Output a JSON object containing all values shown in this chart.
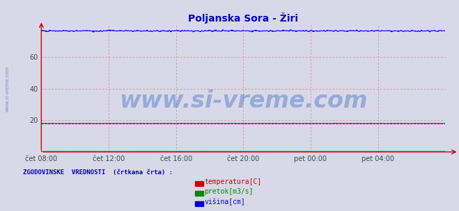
{
  "title": "Poljanska Sora - Žiri",
  "title_color": "#0000cc",
  "bg_color": "#d8d8e8",
  "plot_bg_color": "#d8d8e8",
  "ylim": [
    0,
    80
  ],
  "yticks": [
    20,
    40,
    60
  ],
  "xtick_labels": [
    "čet 08:00",
    "čet 12:00",
    "čet 16:00",
    "čet 20:00",
    "pet 00:00",
    "pet 04:00"
  ],
  "xtick_positions": [
    0,
    4,
    8,
    12,
    16,
    20
  ],
  "n_points": 288,
  "temp_value": 18.0,
  "flow_value": 0.3,
  "height_value": 76.5,
  "temp_color": "#cc0000",
  "flow_color": "#008800",
  "height_color": "#0000cc",
  "grid_color_v": "#cc8888",
  "grid_color_h": "#cc8888",
  "watermark_text": "www.si-vreme.com",
  "watermark_color": "#2255bb",
  "watermark_alpha": 0.35,
  "watermark_fontsize": 24,
  "left_text": "www.si-vreme.com",
  "left_text_color": "#2255bb",
  "legend_title": "ZGODOVINSKE  VREDNOSTI  (črtkana črta) :",
  "legend_items": [
    "temperatura[C]",
    "pretok[m3/s]",
    "višina[cm]"
  ],
  "legend_colors": [
    "#cc0000",
    "#008800",
    "#0000cc"
  ]
}
